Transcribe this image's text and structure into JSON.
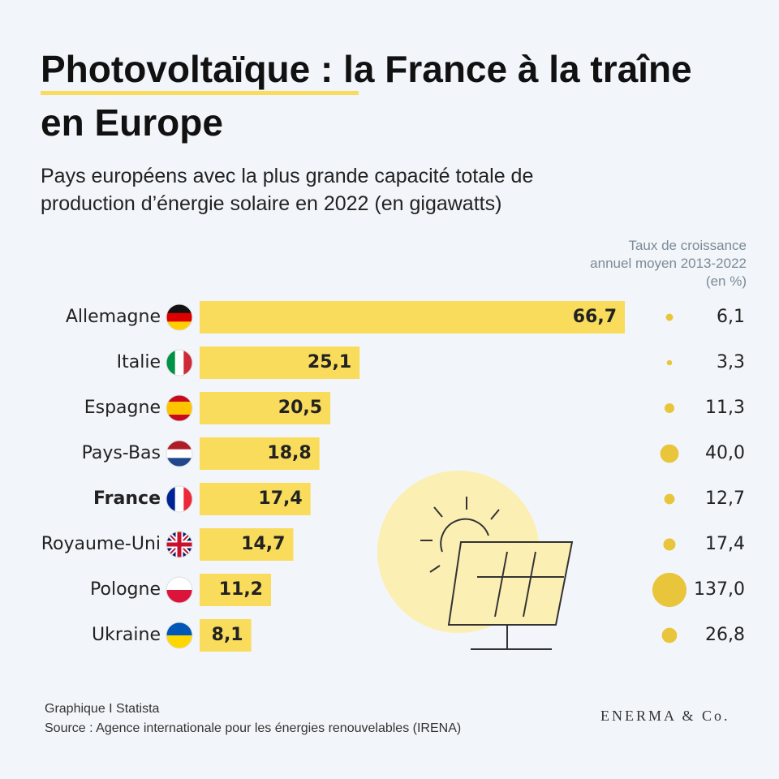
{
  "chart_data": {
    "type": "bar",
    "title": "Photovoltaïque : la France à la traîne en Europe",
    "subtitle": "Pays européens avec la plus grande capacité totale de production d’énergie solaire en 2022 (en gigawatts)",
    "categories": [
      "Allemagne",
      "Italie",
      "Espagne",
      "Pays-Bas",
      "France",
      "Royaume-Uni",
      "Pologne",
      "Ukraine"
    ],
    "values": [
      66.7,
      25.1,
      20.5,
      18.8,
      17.4,
      14.7,
      11.2,
      8.1
    ],
    "value_labels": [
      "66,7",
      "25,1",
      "20,5",
      "18,8",
      "17,4",
      "14,7",
      "11,2",
      "8,1"
    ],
    "color": "#f9dc5c",
    "highlight": "France",
    "growth": {
      "title": "Taux de croissance annuel moyen 2013-2022 (en %)",
      "values": [
        6.1,
        3.3,
        11.3,
        40.0,
        12.7,
        17.4,
        137.0,
        26.8
      ],
      "value_labels": [
        "6,1",
        "3,3",
        "11,3",
        "40,0",
        "12,7",
        "17,4",
        "137,0",
        "26,8"
      ],
      "color": "#e8c53a"
    },
    "source_lines": [
      "Graphique I Statista",
      "Source : Agence internationale pour les énergies renouvelables (IRENA)"
    ],
    "brand": "ENERMA & Co."
  }
}
